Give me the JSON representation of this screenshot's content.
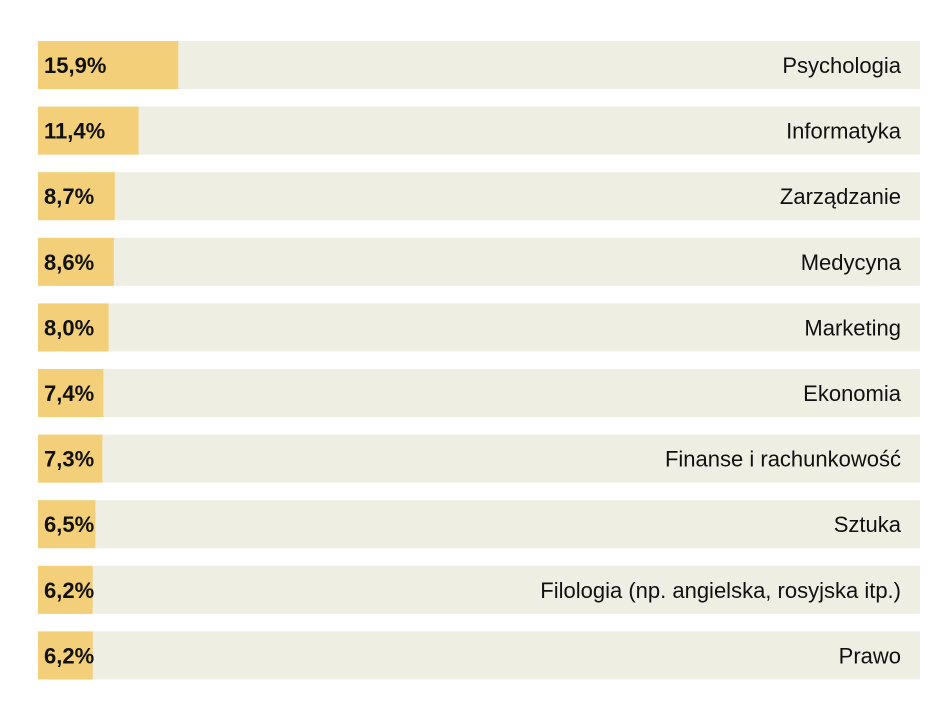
{
  "chart_data": {
    "type": "bar",
    "orientation": "horizontal",
    "categories": [
      "Psychologia",
      "Informatyka",
      "Zarządzanie",
      "Medycyna",
      "Marketing",
      "Ekonomia",
      "Finanse i rachunkowość",
      "Sztuka",
      "Filologia (np. angielska, rosyjska itp.)",
      "Prawo"
    ],
    "values": [
      15.9,
      11.4,
      8.7,
      8.6,
      8.0,
      7.4,
      7.3,
      6.5,
      6.2,
      6.2
    ],
    "value_labels": [
      "15,9%",
      "11,4%",
      "8,7%",
      "8,6%",
      "8,0%",
      "7,4%",
      "7,3%",
      "6,5%",
      "6,2%",
      "6,2%"
    ],
    "xlim": [
      0,
      100
    ],
    "grid": false,
    "colors": {
      "bar": "#f2cf78",
      "track": "#eeeee2",
      "text": "#111111"
    }
  }
}
